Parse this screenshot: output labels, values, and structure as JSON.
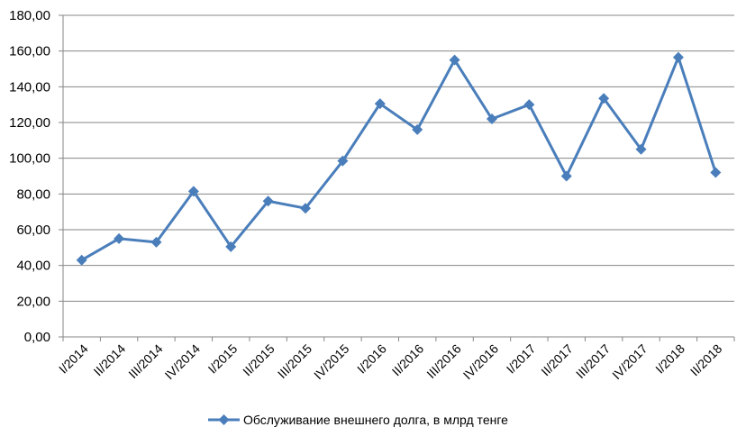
{
  "chart_data": {
    "type": "line",
    "title": "",
    "xlabel": "",
    "ylabel": "",
    "categories": [
      "I/2014",
      "II/2014",
      "III/2014",
      "IV/2014",
      "I/2015",
      "II/2015",
      "III/2015",
      "IV/2015",
      "I/2016",
      "II/2016",
      "III/2016",
      "IV/2016",
      "I/2017",
      "II/2017",
      "III/2017",
      "IV/2017",
      "I/2018",
      "II/2018"
    ],
    "series": [
      {
        "name": "Обслуживание  внешнего  долга, в млрд тенге",
        "values": [
          43,
          55,
          53,
          81.5,
          50.5,
          76,
          72,
          98.5,
          130.5,
          116,
          155,
          122,
          130,
          90,
          133.5,
          105,
          156.5,
          92
        ]
      }
    ],
    "y_ticks": [
      "0,00",
      "20,00",
      "40,00",
      "60,00",
      "80,00",
      "100,00",
      "120,00",
      "140,00",
      "160,00",
      "180,00"
    ],
    "ylim": [
      0,
      180
    ],
    "grid": true,
    "legend_position": "bottom",
    "colors": {
      "series": "#4a7ebb",
      "grid": "#868686",
      "axis": "#868686"
    }
  }
}
